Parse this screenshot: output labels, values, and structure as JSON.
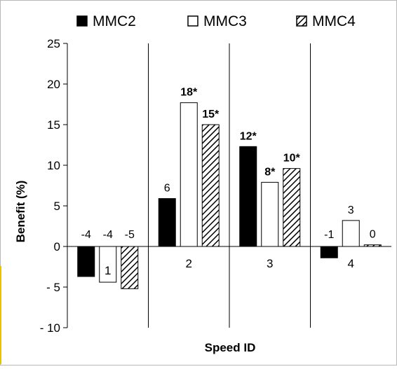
{
  "chart_data": {
    "type": "bar",
    "title": "",
    "xlabel": "Speed ID",
    "ylabel": "Benefit (%)",
    "categories": [
      "1",
      "2",
      "3",
      "4"
    ],
    "ylim": [
      -10,
      25
    ],
    "yticks": [
      25,
      20,
      15,
      10,
      5,
      0,
      -5,
      -10
    ],
    "ytick_labels": [
      "25",
      "20",
      "15",
      "10",
      "5",
      "0",
      "- 5",
      "- 10"
    ],
    "grid": "vertical separators between categories",
    "legend_position": "top",
    "series": [
      {
        "name": "MMC2",
        "fill": "solid-black",
        "values": [
          -3.7,
          5.9,
          12.3,
          -1.4
        ],
        "labels": [
          "-4",
          "6",
          "12*",
          "-1"
        ],
        "label_bold": [
          false,
          false,
          true,
          false
        ]
      },
      {
        "name": "MMC3",
        "fill": "white",
        "values": [
          -4.4,
          17.7,
          7.9,
          3.2
        ],
        "labels": [
          "-4",
          "18*",
          "8*",
          "3"
        ],
        "label_bold": [
          false,
          true,
          true,
          false
        ]
      },
      {
        "name": "MMC4",
        "fill": "hatched",
        "values": [
          -5.2,
          15.0,
          9.6,
          0.2
        ],
        "labels": [
          "-5",
          "15*",
          "10*",
          "0"
        ],
        "label_bold": [
          false,
          true,
          true,
          false
        ]
      }
    ]
  },
  "colors": {
    "bar_outline": "#000000",
    "solid": "#000000",
    "white": "#ffffff",
    "frame_border": "#b8b8b8",
    "left_edge": "#e8c400"
  },
  "legend_icons": [
    "filled-square-icon",
    "empty-square-icon",
    "hatched-square-icon"
  ]
}
